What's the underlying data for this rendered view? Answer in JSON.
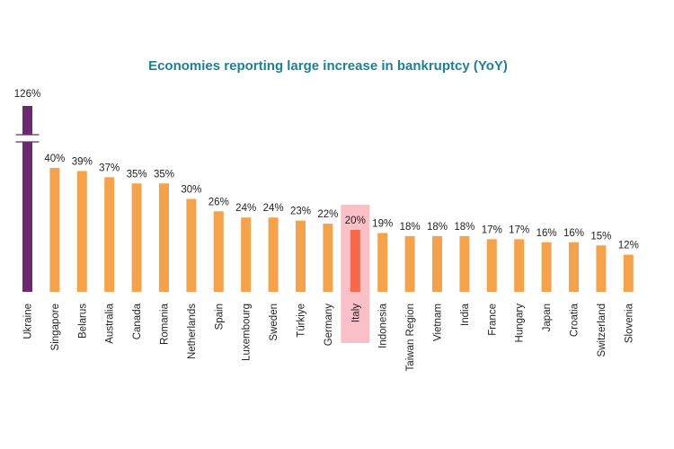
{
  "chart_data": {
    "type": "bar",
    "title": "Economies reporting large increase in bankruptcy (YoY)",
    "xlabel": "",
    "ylabel": "",
    "ylim": [
      0,
      45
    ],
    "axis_break": true,
    "grid": false,
    "legend": "none",
    "categories": [
      "Ukraine",
      "Singapore",
      "Belarus",
      "Australia",
      "Canada",
      "Romania",
      "Netherlands",
      "Spain",
      "Luxembourg",
      "Sweden",
      "Türkiye",
      "Germany",
      "Italy",
      "Indonesia",
      "Taiwan Region",
      "Vietnam",
      "India",
      "France",
      "Hungary",
      "Japan",
      "Croatia",
      "Switzerland",
      "Slovenia"
    ],
    "values": [
      126,
      40,
      39,
      37,
      35,
      35,
      30,
      26,
      24,
      24,
      23,
      22,
      20,
      19,
      18,
      18,
      18,
      17,
      17,
      16,
      16,
      15,
      12
    ],
    "value_labels": [
      "126%",
      "40%",
      "39%",
      "37%",
      "35%",
      "35%",
      "30%",
      "26%",
      "24%",
      "24%",
      "23%",
      "22%",
      "20%",
      "19%",
      "18%",
      "18%",
      "18%",
      "17%",
      "17%",
      "16%",
      "16%",
      "15%",
      "12%"
    ],
    "highlight_category": "Italy",
    "colors": {
      "default": "#f4a24c",
      "outlier": "#6b2a6f",
      "highlight_bar": "#f26a4a",
      "highlight_background": "#f9c0c8",
      "title": "#1f7f93"
    }
  }
}
